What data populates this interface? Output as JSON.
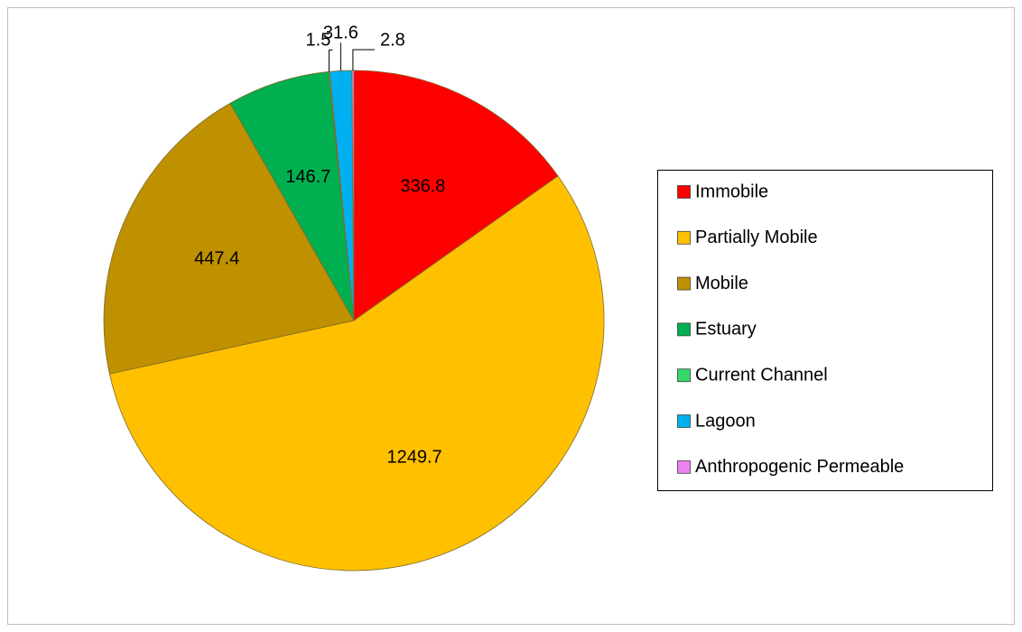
{
  "chart_data": {
    "type": "pie",
    "categories": [
      "Immobile",
      "Partially Mobile",
      "Mobile",
      "Estuary",
      "Current Channel",
      "Lagoon",
      "Anthropogenic Permeable"
    ],
    "values": [
      336.8,
      1249.7,
      447.4,
      146.7,
      1.5,
      31.6,
      2.8
    ],
    "colors": [
      "#ff0000",
      "#ffc000",
      "#bf9000",
      "#00b050",
      "#33d96b",
      "#00b0f0",
      "#ee82ee"
    ],
    "legend": "right"
  }
}
